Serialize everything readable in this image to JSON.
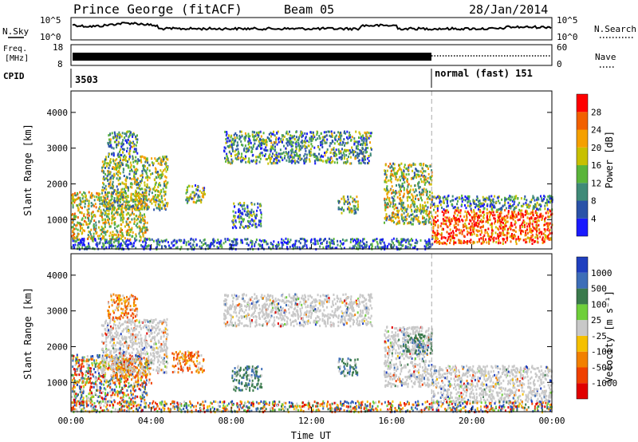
{
  "header": {
    "station": "Prince George (fitACF)",
    "beam": "Beam 05",
    "date": "28/Jan/2014"
  },
  "panels": {
    "nsky": {
      "left_label": "N.Sky",
      "right_label": "N.Search",
      "ticks": [
        "10^5",
        "10^0"
      ]
    },
    "freq": {
      "left_label_1": "Freq.",
      "left_label_2": "[MHz]",
      "ticks_left": [
        "18",
        "8"
      ],
      "right_label": "Nave",
      "ticks_right": [
        "60",
        "0"
      ]
    },
    "cpid": {
      "label": "CPID",
      "segments": [
        "3503",
        "normal (fast) 151"
      ]
    }
  },
  "chart_data": [
    {
      "type": "heatmap",
      "title": "",
      "xlabel": "Time UT",
      "ylabel": "Slant Range [km]",
      "x_ticks": [
        "00:00",
        "04:00",
        "08:00",
        "12:00",
        "16:00",
        "20:00",
        "00:00"
      ],
      "xlim_hours": [
        0,
        24
      ],
      "y_ticks": [
        "1000",
        "2000",
        "3000",
        "4000"
      ],
      "ylim": [
        180,
        4600
      ],
      "mode_change_time": "18:00",
      "colorbar": {
        "label": "Power [dB]",
        "ticks": [
          "4",
          "8",
          "12",
          "16",
          "20",
          "24",
          "28"
        ],
        "range": [
          0,
          32
        ],
        "colors": [
          "#1a1aff",
          "#2a52a8",
          "#3f8a78",
          "#5ab53a",
          "#c8c000",
          "#f5a000",
          "#f26000",
          "#ff0000"
        ]
      },
      "echo_regions": [
        {
          "t0": 0.0,
          "t1": 3.8,
          "r0": 450,
          "r1": 1800,
          "level": 0.55
        },
        {
          "t0": 1.5,
          "t1": 4.8,
          "r0": 1300,
          "r1": 2800,
          "level": 0.45
        },
        {
          "t0": 1.8,
          "t1": 3.3,
          "r0": 2800,
          "r1": 3500,
          "level": 0.35
        },
        {
          "t0": 5.7,
          "t1": 6.7,
          "r0": 1500,
          "r1": 2000,
          "level": 0.4
        },
        {
          "t0": 8.0,
          "t1": 9.5,
          "r0": 800,
          "r1": 1500,
          "level": 0.3
        },
        {
          "t0": 7.6,
          "t1": 15.0,
          "r0": 2600,
          "r1": 3500,
          "level": 0.35
        },
        {
          "t0": 13.3,
          "t1": 14.3,
          "r0": 1200,
          "r1": 1700,
          "level": 0.4
        },
        {
          "t0": 15.6,
          "t1": 18.0,
          "r0": 900,
          "r1": 2600,
          "level": 0.5
        },
        {
          "t0": 18.0,
          "t1": 24.0,
          "r0": 350,
          "r1": 1300,
          "level": 0.85
        },
        {
          "t0": 18.0,
          "t1": 24.0,
          "r0": 1300,
          "r1": 1700,
          "level": 0.3
        },
        {
          "t0": 0.0,
          "t1": 18.0,
          "r0": 200,
          "r1": 500,
          "level": 0.2
        }
      ]
    },
    {
      "type": "heatmap",
      "title": "",
      "xlabel": "Time UT",
      "ylabel": "Slant Range [km]",
      "x_ticks": [
        "00:00",
        "04:00",
        "08:00",
        "12:00",
        "16:00",
        "20:00",
        "00:00"
      ],
      "xlim_hours": [
        0,
        24
      ],
      "y_ticks": [
        "1000",
        "2000",
        "3000",
        "4000"
      ],
      "ylim": [
        180,
        4600
      ],
      "mode_change_time": "18:00",
      "colorbar": {
        "label": "Velocity [m s⁻¹]",
        "ticks": [
          "1000",
          "500",
          "100",
          "25",
          "-25",
          "-100",
          "-500",
          "-1000"
        ],
        "colors": [
          "#1f3fbf",
          "#3d6eb8",
          "#3a7a4c",
          "#6fcf3a",
          "#c8c8c8",
          "#f5c000",
          "#f28000",
          "#f04000",
          "#e00000"
        ]
      },
      "echo_regions": [
        {
          "t0": 0.0,
          "t1": 3.8,
          "r0": 450,
          "r1": 1800,
          "cls": "mix"
        },
        {
          "t0": 2.0,
          "t1": 4.0,
          "r0": 1000,
          "r1": 1700,
          "cls": "neg"
        },
        {
          "t0": 5.0,
          "t1": 6.6,
          "r0": 1300,
          "r1": 1900,
          "cls": "neg"
        },
        {
          "t0": 1.5,
          "t1": 4.8,
          "r0": 1300,
          "r1": 2800,
          "cls": "gray"
        },
        {
          "t0": 1.8,
          "t1": 3.3,
          "r0": 2800,
          "r1": 3500,
          "cls": "neg"
        },
        {
          "t0": 8.0,
          "t1": 9.5,
          "r0": 800,
          "r1": 1500,
          "cls": "pos"
        },
        {
          "t0": 7.6,
          "t1": 15.0,
          "r0": 2600,
          "r1": 3500,
          "cls": "gray"
        },
        {
          "t0": 13.3,
          "t1": 14.3,
          "r0": 1200,
          "r1": 1700,
          "cls": "pos"
        },
        {
          "t0": 15.6,
          "t1": 18.0,
          "r0": 900,
          "r1": 2600,
          "cls": "gray"
        },
        {
          "t0": 16.5,
          "t1": 18.0,
          "r0": 1800,
          "r1": 2400,
          "cls": "pos"
        },
        {
          "t0": 18.0,
          "t1": 24.0,
          "r0": 450,
          "r1": 1500,
          "cls": "gray"
        },
        {
          "t0": 0.0,
          "t1": 24.0,
          "r0": 200,
          "r1": 500,
          "cls": "mix"
        }
      ]
    }
  ]
}
